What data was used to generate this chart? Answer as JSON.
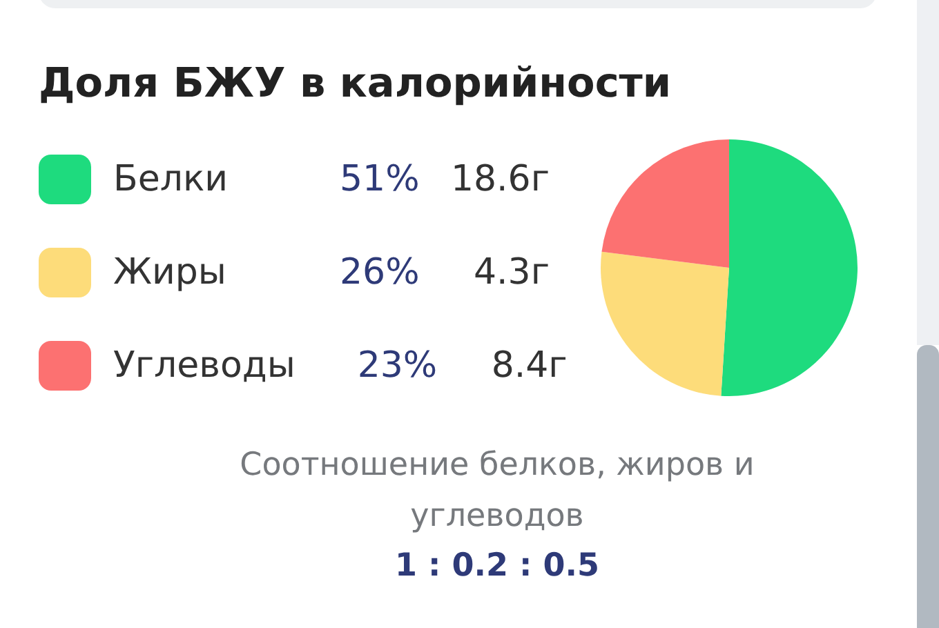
{
  "chart_data": {
    "type": "pie",
    "title": "Доля БЖУ в калорийности",
    "categories": [
      "Белки",
      "Жиры",
      "Углеводы"
    ],
    "values": [
      51,
      26,
      23
    ],
    "colors": [
      "#1edb7e",
      "#fddc7a",
      "#fc7171"
    ],
    "value_labels": [
      "51%",
      "26%",
      "23%"
    ],
    "legend": "left",
    "annotations": [
      {
        "text": "18.6г",
        "x": "Белки"
      },
      {
        "text": "4.3г",
        "x": "Жиры"
      },
      {
        "text": "8.4г",
        "x": "Углеводы"
      },
      "Соотношение белков, жиров и углеводов",
      "1 : 0.2 : 0.5"
    ]
  }
}
